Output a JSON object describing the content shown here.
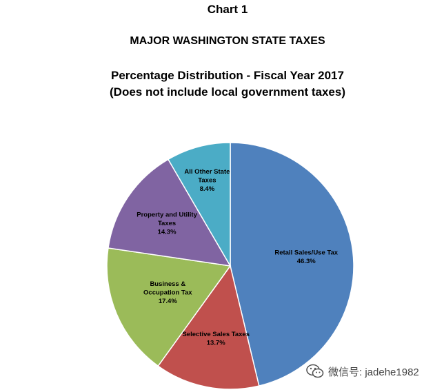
{
  "chart_data": {
    "type": "pie",
    "title": "Chart 1",
    "subtitle": "MAJOR WASHINGTON STATE TAXES",
    "subtitle2": "Percentage Distribution - Fiscal Year 2017",
    "subtitle3": "(Does not include local government taxes)",
    "slices": [
      {
        "label": [
          "Retail Sales/Use Tax"
        ],
        "value": 46.3,
        "display": "46.3%",
        "color": "#4f81bd"
      },
      {
        "label": [
          "Selective Sales Taxes"
        ],
        "value": 13.7,
        "display": "13.7%",
        "color": "#c0504d"
      },
      {
        "label": [
          "Business &",
          "Occupation Tax"
        ],
        "value": 17.4,
        "display": "17.4%",
        "color": "#9bbb59"
      },
      {
        "label": [
          "Property and Utility",
          "Taxes"
        ],
        "value": 14.3,
        "display": "14.3%",
        "color": "#8064a2"
      },
      {
        "label": [
          "All Other State",
          "Taxes"
        ],
        "value": 8.4,
        "display": "8.4%",
        "color": "#4bacc6"
      }
    ]
  },
  "watermark": {
    "text": "微信号: jadehe1982",
    "icon": "wechat-icon"
  }
}
